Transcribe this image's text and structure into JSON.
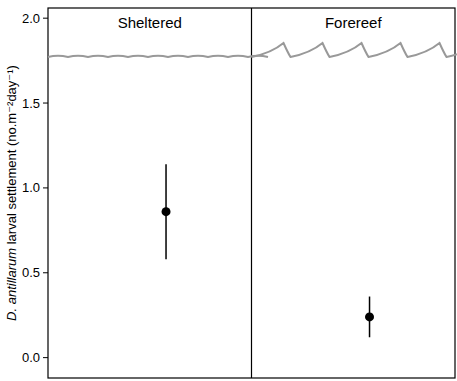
{
  "chart_data": {
    "type": "point",
    "y_label": "D. antillarum larval settlement (no.m⁻²day⁻¹)",
    "categories": [
      "Sheltered",
      "Forereef"
    ],
    "values": [
      0.86,
      0.24
    ],
    "errors": [
      0.28,
      0.12
    ],
    "color": "#000000",
    "ylim": [
      -0.12,
      2.06
    ],
    "yticks": [
      {
        "value": 0,
        "label": "0.0"
      },
      0.5,
      {
        "value": 1,
        "label": "1.0"
      },
      1.5,
      {
        "value": 2,
        "label": "2.0"
      }
    ],
    "grid": false
  }
}
